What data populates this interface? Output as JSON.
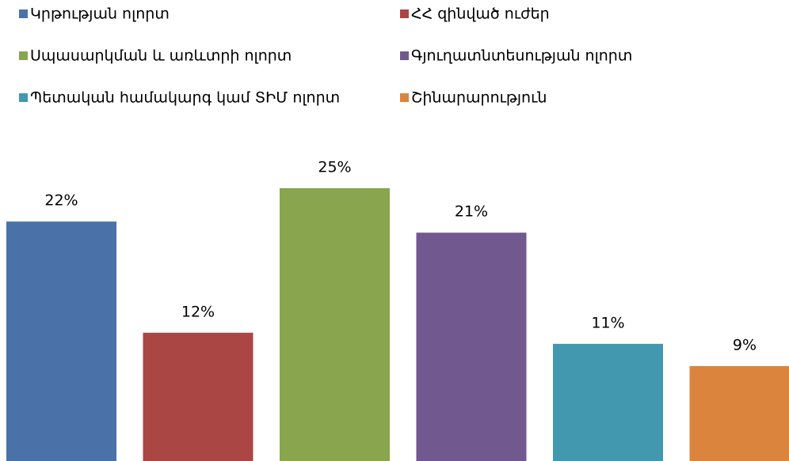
{
  "chart_data": {
    "type": "bar",
    "series": [
      {
        "name": "Կրթության ոլորտ",
        "color": "#4a72a8",
        "values": [
          22
        ],
        "value_labels": [
          "22%"
        ]
      },
      {
        "name": "ՀՀ զինված ուժեր",
        "color": "#aa4644",
        "values": [
          12
        ],
        "value_labels": [
          "12%"
        ]
      },
      {
        "name": "Սպասարկման և առևտրի ոլորտ",
        "color": "#89a54e",
        "values": [
          25
        ],
        "value_labels": [
          "25%"
        ]
      },
      {
        "name": "Գյուղատնտեսության ոլորտ",
        "color": "#71588f",
        "values": [
          21
        ],
        "value_labels": [
          "21%"
        ]
      },
      {
        "name": "Պետական համակարգ կամ ՏԻՄ ոլորտ",
        "color": "#4198af",
        "values": [
          11
        ],
        "value_labels": [
          "11%"
        ]
      },
      {
        "name": "Շինարարություն",
        "color": "#db843d",
        "values": [
          9
        ],
        "value_labels": [
          "9%"
        ]
      }
    ]
  }
}
